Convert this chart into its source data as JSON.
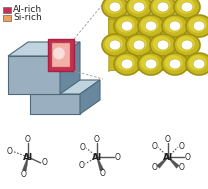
{
  "legend_labels": [
    "Al-rich",
    "Si-rich"
  ],
  "legend_color_al": "#c83050",
  "legend_color_si": "#f0a060",
  "background_color": "#ffffff",
  "text_color": "#222222",
  "al_label": "Al",
  "o_label": "O",
  "crystal_front_color": "#9ab0c0",
  "crystal_top_color": "#c0d4e0",
  "crystal_right_color": "#6888a0",
  "crystal_edge_color": "#506878",
  "zeolite_color_light": "#e8d840",
  "zeolite_color_mid": "#c8b820",
  "zeolite_color_dark": "#a09010",
  "panel_color_outer": "#c03050",
  "panel_color_inner": "#f8c0b0",
  "legend_fontsize": 6.5,
  "mol_fontsize": 6
}
